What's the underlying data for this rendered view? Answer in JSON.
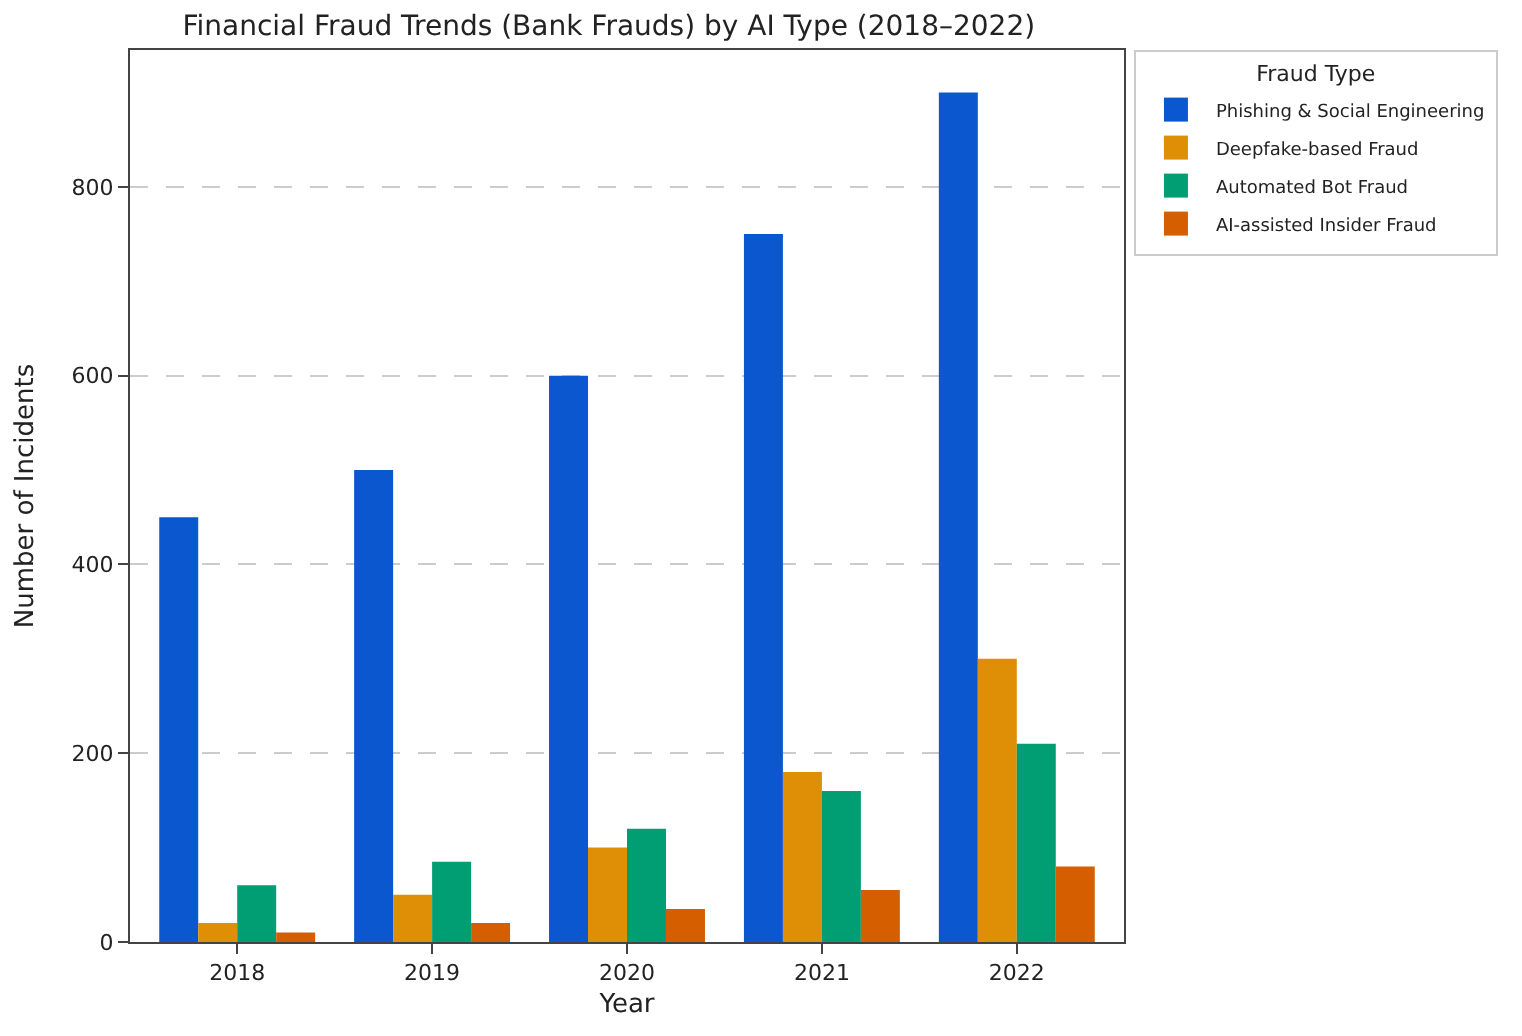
{
  "chart_data": {
    "type": "bar",
    "title": "Financial Fraud Trends (Bank Frauds) by AI Type (2018–2022)",
    "xlabel": "Year",
    "ylabel": "Number of Incidents",
    "legend_title": "Fraud Type",
    "categories": [
      "2018",
      "2019",
      "2020",
      "2021",
      "2022"
    ],
    "series": [
      {
        "name": "Phishing & Social Engineering",
        "color": "#0b57d0",
        "values": [
          450,
          500,
          600,
          750,
          900
        ]
      },
      {
        "name": "Deepfake-based Fraud",
        "color": "#de8f05",
        "values": [
          20,
          50,
          100,
          180,
          300
        ]
      },
      {
        "name": "Automated Bot Fraud",
        "color": "#029e73",
        "values": [
          60,
          85,
          120,
          160,
          210
        ]
      },
      {
        "name": "AI-assisted Insider Fraud",
        "color": "#d55e00",
        "values": [
          10,
          20,
          35,
          55,
          80
        ]
      }
    ],
    "ylim": [
      0,
      945
    ],
    "yticks": [
      0,
      200,
      400,
      600,
      800
    ],
    "grid": "y",
    "legend": "top right"
  }
}
